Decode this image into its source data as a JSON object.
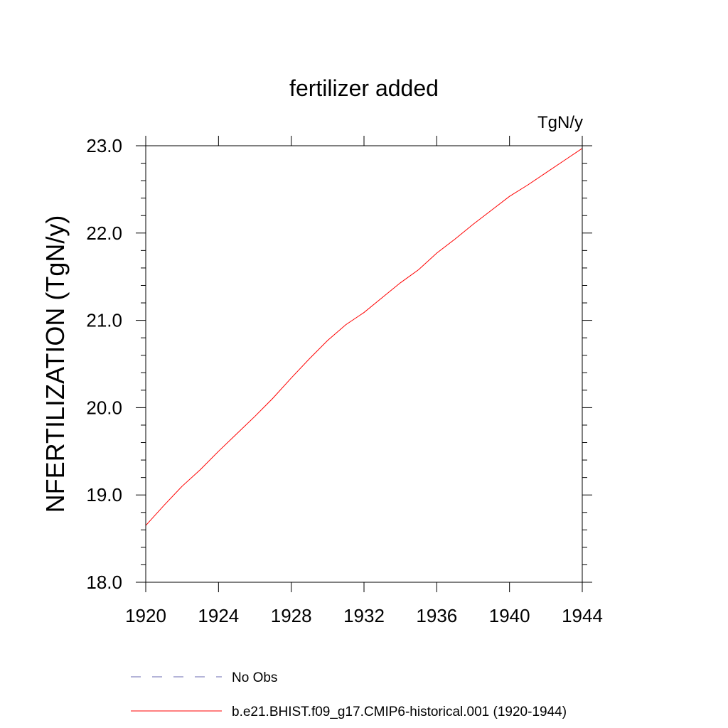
{
  "chart_data": {
    "type": "line",
    "title": "fertilizer added",
    "units": "TgN/y",
    "ylabel": "NFERTILIZATION  (TgN/y)",
    "xlabel": "",
    "xlim": [
      1920,
      1944
    ],
    "ylim": [
      18.0,
      23.0
    ],
    "x_ticks": [
      "1920",
      "1924",
      "1928",
      "1932",
      "1936",
      "1940",
      "1944"
    ],
    "y_ticks": [
      "18.0",
      "19.0",
      "20.0",
      "21.0",
      "22.0",
      "23.0"
    ],
    "grid": false,
    "legend_position": "bottom",
    "series": [
      {
        "name": "No Obs",
        "color": "#6a6ab0",
        "dash": "dashed",
        "x": [],
        "y": []
      },
      {
        "name": "b.e21.BHIST.f09_g17.CMIP6-historical.001 (1920-1944)",
        "color": "#ff0000",
        "dash": "solid",
        "x": [
          1920,
          1921,
          1922,
          1923,
          1924,
          1925,
          1926,
          1927,
          1928,
          1929,
          1930,
          1931,
          1932,
          1933,
          1934,
          1935,
          1936,
          1937,
          1938,
          1939,
          1940,
          1941,
          1942,
          1943,
          1944
        ],
        "y": [
          18.65,
          18.88,
          19.1,
          19.29,
          19.5,
          19.7,
          19.9,
          20.11,
          20.34,
          20.56,
          20.77,
          20.95,
          21.09,
          21.26,
          21.43,
          21.58,
          21.77,
          21.93,
          22.1,
          22.26,
          22.42,
          22.55,
          22.69,
          22.83,
          22.97
        ]
      }
    ]
  }
}
